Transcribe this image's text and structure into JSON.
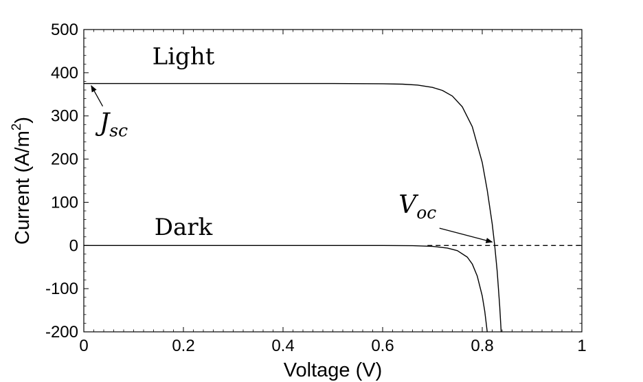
{
  "chart_data": {
    "type": "line",
    "title": "",
    "xlabel": "Voltage (V)",
    "ylabel_main": "Current (A/m",
    "ylabel_sup": "2",
    "ylabel_close": ")",
    "xlim": [
      0,
      1
    ],
    "ylim": [
      -200,
      500
    ],
    "xticks": [
      0,
      0.2,
      0.4,
      0.6,
      0.8,
      1
    ],
    "xtick_labels": [
      "0",
      "0.2",
      "0.4",
      "0.6",
      "0.8",
      "1"
    ],
    "yticks": [
      -200,
      -100,
      0,
      100,
      200,
      300,
      400,
      500
    ],
    "ytick_labels": [
      "-200",
      "-100",
      "0",
      "100",
      "200",
      "300",
      "400",
      "500"
    ],
    "grid": false,
    "series": [
      {
        "name": "Light",
        "style": "solid",
        "color": "#000000",
        "x": [
          0,
          0.1,
          0.2,
          0.3,
          0.4,
          0.5,
          0.6,
          0.64,
          0.67,
          0.7,
          0.72,
          0.74,
          0.76,
          0.78,
          0.8,
          0.81,
          0.82,
          0.825,
          0.83,
          0.835,
          0.838
        ],
        "y": [
          375,
          375,
          375,
          375,
          375,
          375,
          374.5,
          373.5,
          371.5,
          366,
          359,
          346,
          321,
          275,
          192,
          128,
          50,
          0,
          -60,
          -140,
          -200
        ]
      },
      {
        "name": "Dark",
        "style": "solid",
        "color": "#000000",
        "x": [
          0,
          0.1,
          0.2,
          0.3,
          0.4,
          0.5,
          0.6,
          0.66,
          0.7,
          0.73,
          0.75,
          0.77,
          0.78,
          0.79,
          0.8,
          0.805,
          0.81
        ],
        "y": [
          0,
          0,
          0,
          0,
          0,
          0,
          0,
          -0.5,
          -2,
          -6,
          -12,
          -27,
          -43,
          -71,
          -117,
          -152,
          -200
        ]
      },
      {
        "name": "zero line",
        "style": "dashed",
        "color": "#000000",
        "x": [
          0.69,
          1
        ],
        "y": [
          0,
          0
        ]
      }
    ],
    "annotations": [
      {
        "id": "light",
        "text": "Light",
        "x": 0.2,
        "y": 420
      },
      {
        "id": "dark",
        "text": "Dark",
        "x": 0.2,
        "y": 24
      },
      {
        "id": "jsc",
        "text": "J",
        "sub": "sc",
        "x": 0.06,
        "y": 265,
        "arrow_to": [
          0.015,
          370
        ]
      },
      {
        "id": "voc",
        "text": "V",
        "sub": "oc",
        "x": 0.67,
        "y": 75,
        "arrow_to": [
          0.82,
          8
        ]
      }
    ]
  }
}
